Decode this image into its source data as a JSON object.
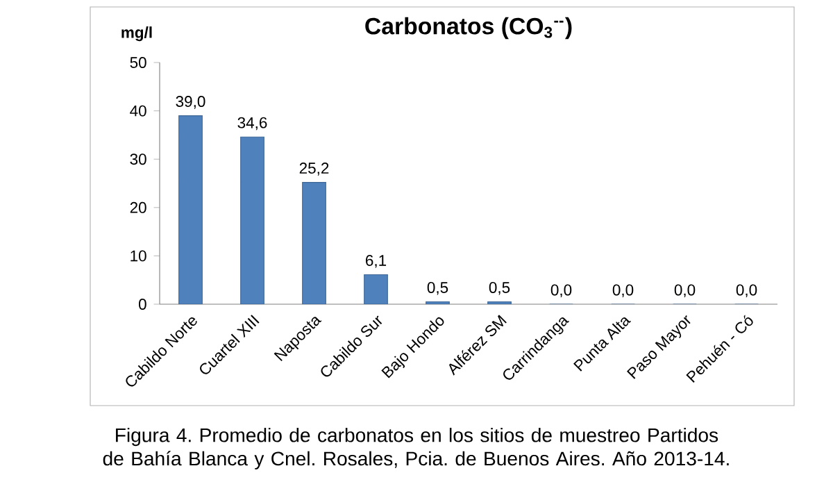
{
  "chart_data": {
    "type": "bar",
    "title": "Carbonatos (CO$_{3}$$^{--}$)",
    "ylabel": "mg/l",
    "categories": [
      "Cabildo Norte",
      "Cuartel XIII",
      "Naposta",
      "Cabildo Sur",
      "Bajo Hondo",
      "Alférez SM",
      "Carrindanga",
      "Punta Alta",
      "Paso Mayor",
      "Pehuén - Có"
    ],
    "values": [
      39.0,
      34.6,
      25.2,
      6.1,
      0.5,
      0.5,
      0.0,
      0.0,
      0.0,
      0.0
    ],
    "value_labels": [
      "39,0",
      "34,6",
      "25,2",
      "6,1",
      "0,5",
      "0,5",
      "0,0",
      "0,0",
      "0,0",
      "0,0"
    ],
    "color": "#4f81bd",
    "ylim": [
      0,
      50
    ],
    "yticks": [
      0,
      10,
      20,
      30,
      40,
      50
    ],
    "annotations": [
      "Figura 4. Promedio de carbonatos en los sitios de muestreo Partidos de Bahía Blanca y Cnel. Rosales, Pcia. de Buenos Aires. Año 2013-14."
    ]
  }
}
